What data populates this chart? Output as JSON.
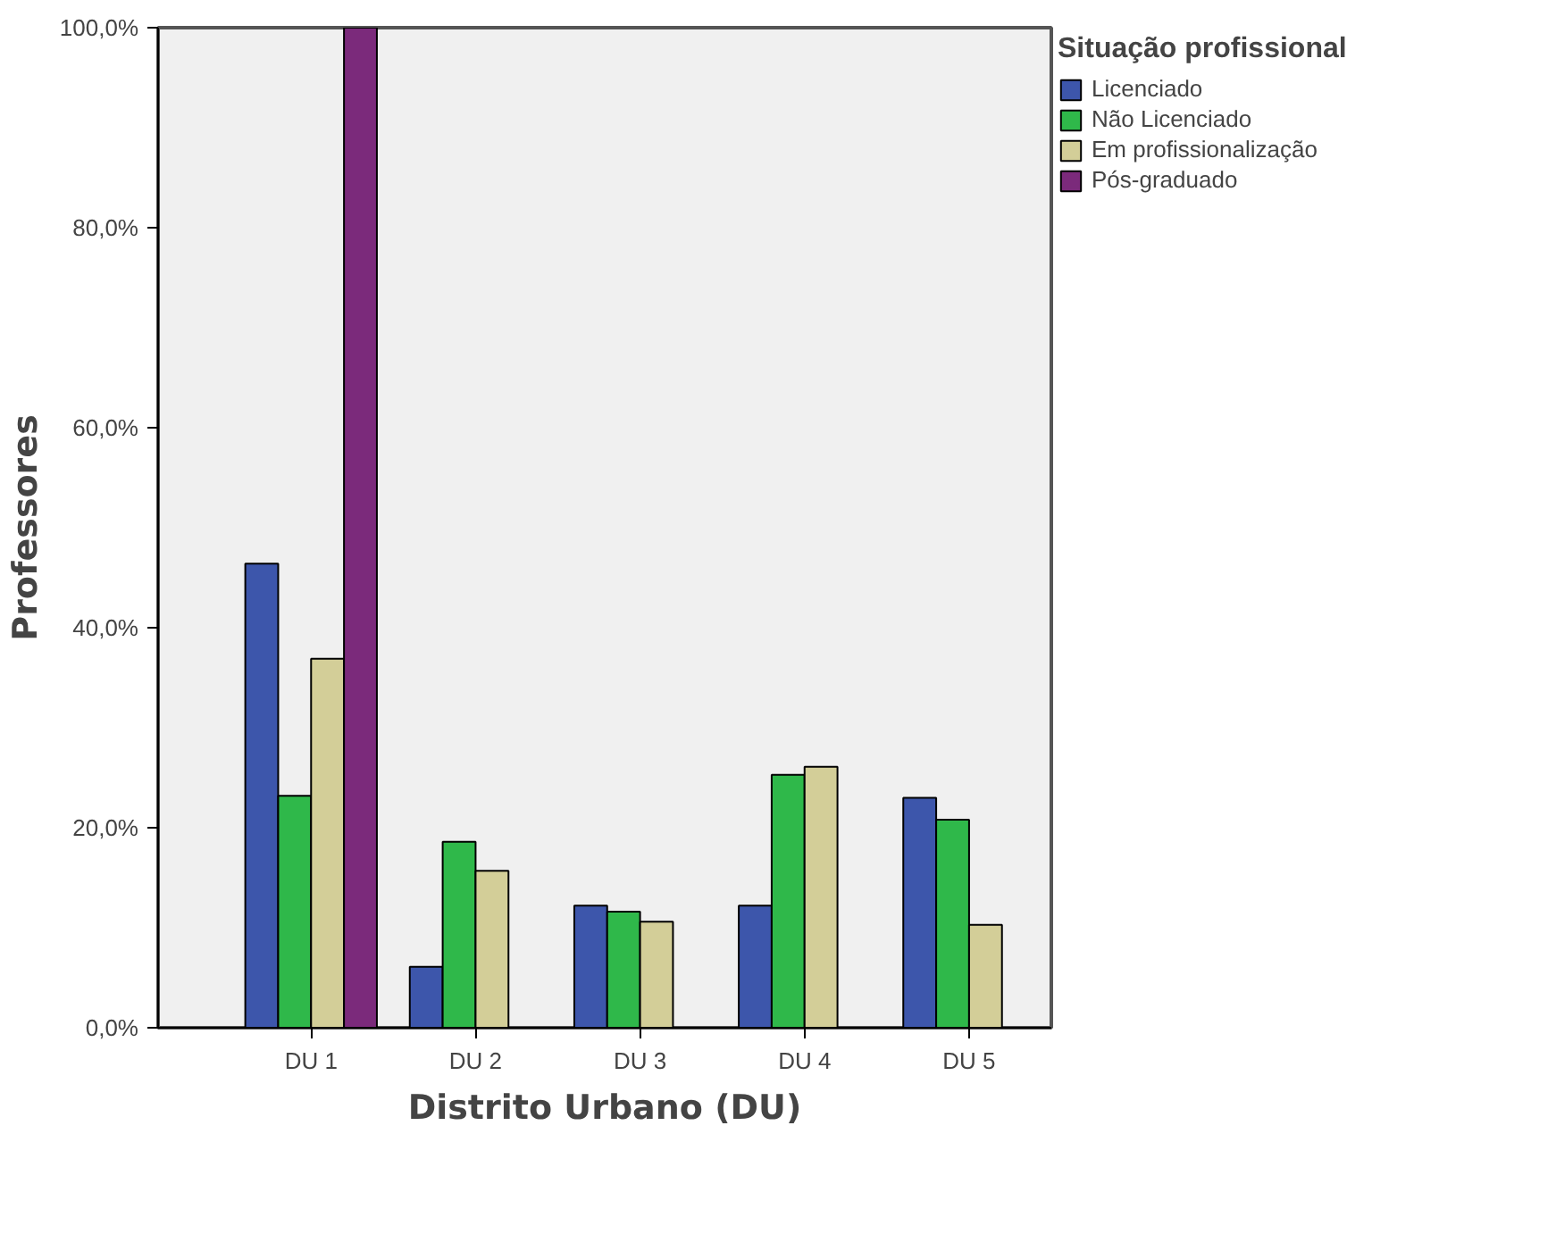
{
  "chart_data": {
    "type": "bar",
    "xlabel": "Distrito Urbano (DU)",
    "ylabel": "Professores",
    "legend_title": "Situação profissional",
    "categories": [
      "DU 1",
      "DU 2",
      "DU 3",
      "DU 4",
      "DU 5"
    ],
    "series": [
      {
        "name": "Licenciado",
        "color": "#3d56ab",
        "values": [
          46.4,
          6.1,
          12.2,
          12.2,
          23.0
        ]
      },
      {
        "name": "Não Licenciado",
        "color": "#2fb84a",
        "values": [
          23.2,
          18.6,
          11.6,
          25.3,
          20.8
        ]
      },
      {
        "name": "Em profissionalização",
        "color": "#d3ce98",
        "values": [
          36.9,
          15.7,
          10.6,
          26.1,
          10.3
        ]
      },
      {
        "name": "Pós-graduado",
        "color": "#7b2a7b",
        "values": [
          100,
          null,
          null,
          null,
          null
        ]
      }
    ],
    "ylim": [
      0,
      100
    ],
    "yticks": [
      {
        "value": 0,
        "label": "0,0%"
      },
      {
        "value": 20,
        "label": "20,0%"
      },
      {
        "value": 40,
        "label": "40,0%"
      },
      {
        "value": 60,
        "label": "60,0%"
      },
      {
        "value": 80,
        "label": "80,0%"
      },
      {
        "value": 100,
        "label": "100,0%"
      }
    ],
    "grid": false,
    "legend": "top right"
  }
}
